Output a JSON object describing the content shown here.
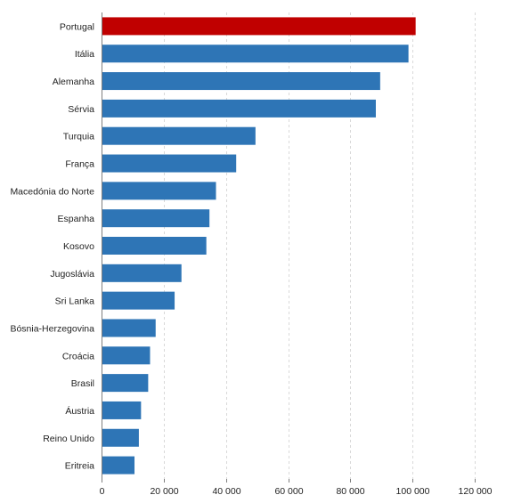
{
  "chart_data": {
    "type": "bar",
    "orientation": "horizontal",
    "categories": [
      "Portugal",
      "Itália",
      "Alemanha",
      "Sérvia",
      "Turquia",
      "França",
      "Macedónia do Norte",
      "Espanha",
      "Kosovo",
      "Jugoslávia",
      "Sri Lanka",
      "Bósnia-Herzegovina",
      "Croácia",
      "Brasil",
      "Áustria",
      "Reino Unido",
      "Eritreia"
    ],
    "values": [
      101000,
      98700,
      89600,
      88200,
      49500,
      43300,
      36800,
      34700,
      33700,
      25700,
      23500,
      17400,
      15600,
      15000,
      12700,
      12000,
      10600
    ],
    "highlight_category": "Portugal",
    "colors": {
      "bar": "#2e75b6",
      "highlight": "#c00000",
      "grid": "#d9d9d9",
      "axis": "#7f7f7f"
    },
    "xlim": [
      0,
      120000
    ],
    "xticks": [
      0,
      20000,
      40000,
      60000,
      80000,
      100000,
      120000
    ],
    "xtick_labels": [
      "0",
      "20 000",
      "40 000",
      "60 000",
      "80 000",
      "100 000",
      "120 000"
    ],
    "grid": true,
    "grid_style": "dashed vertical",
    "title": "",
    "xlabel": "",
    "ylabel": ""
  }
}
